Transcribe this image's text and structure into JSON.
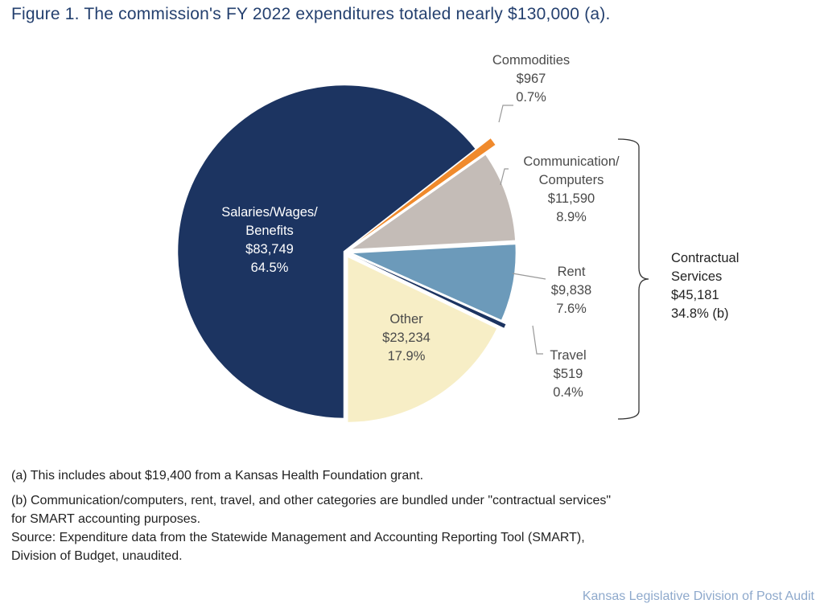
{
  "title": "Figure 1. The commission's FY 2022 expenditures totaled nearly $130,000 (a).",
  "chart_data": {
    "type": "pie",
    "title": "Figure 1. The commission's FY 2022 expenditures totaled nearly $130,000 (a).",
    "start": "bottom, clockwise",
    "slices": [
      {
        "name": "Salaries/Wages/ Benefits",
        "line1": "Salaries/Wages/",
        "line2": "Benefits",
        "value": 83749,
        "value_label": "$83,749",
        "percent": 64.5,
        "percent_label": "64.5%",
        "color": "#1c3461"
      },
      {
        "name": "Commodities",
        "line1": "Commodities",
        "line2": "",
        "value": 967,
        "value_label": "$967",
        "percent": 0.7,
        "percent_label": "0.7%",
        "color": "#f08a2c"
      },
      {
        "name": "Communication/ Computers",
        "line1": "Communication/",
        "line2": "Computers",
        "value": 11590,
        "value_label": "$11,590",
        "percent": 8.9,
        "percent_label": "8.9%",
        "color": "#c4bcb7"
      },
      {
        "name": "Rent",
        "line1": "Rent",
        "line2": "",
        "value": 9838,
        "value_label": "$9,838",
        "percent": 7.6,
        "percent_label": "7.6%",
        "color": "#6c9aba"
      },
      {
        "name": "Travel",
        "line1": "Travel",
        "line2": "",
        "value": 519,
        "value_label": "$519",
        "percent": 0.4,
        "percent_label": "0.4%",
        "color": "#1c3461"
      },
      {
        "name": "Other",
        "line1": "Other",
        "line2": "",
        "value": 23234,
        "value_label": "$23,234",
        "percent": 17.9,
        "percent_label": "17.9%",
        "color": "#f7eec6"
      }
    ],
    "group": {
      "line1": "Contractual",
      "line2": "Services",
      "value_label": "$45,181",
      "percent_label": "34.8% (b)"
    }
  },
  "notes": {
    "a": "(a) This includes about $19,400 from a Kansas Health Foundation grant.",
    "b1": "(b) Communication/computers, rent, travel, and other categories are bundled under \"contractual services\"",
    "b2": "for SMART accounting purposes.",
    "source1": "Source: Expenditure data from the Statewide Management and Accounting Reporting Tool (SMART),",
    "source2": "Division of Budget, unaudited."
  },
  "credit": "Kansas Legislative Division of Post Audit"
}
